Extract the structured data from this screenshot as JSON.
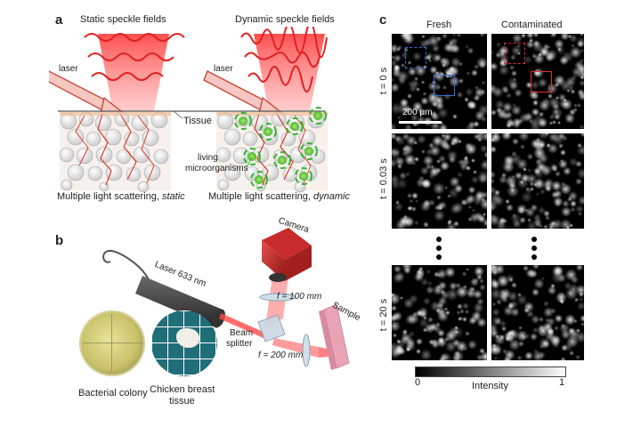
{
  "panel_a": {
    "label": "a",
    "static_title": "Static speckle fields",
    "dynamic_title": "Dynamic speckle fields",
    "laser_left": "laser",
    "laser_right": "laser",
    "tissue": "Tissue",
    "living": "living",
    "microorganisms": "microorganisms",
    "caption_static_prefix": "Multiple light scattering, ",
    "caption_static_em": "static",
    "caption_dynamic_prefix": "Multiple light scattering, ",
    "caption_dynamic_em": "dynamic"
  },
  "panel_b": {
    "label": "b",
    "camera": "Camera",
    "laser": "Laser 633 nm",
    "f100": "f = 100 mm",
    "f200": "f = 200 mm",
    "beam": "Beam",
    "splitter": "splitter",
    "sample": "Sample",
    "bacterial": "Bacterial colony",
    "chicken1": "Chicken breast",
    "chicken2": "tissue"
  },
  "panel_c": {
    "label": "c",
    "fresh": "Fresh",
    "contaminated": "Contaminated",
    "t0": "t = 0 s",
    "t003": "t = 0.03 s",
    "t20": "t = 20 s",
    "scale": "200 μm",
    "cb_min": "0",
    "cb_label": "Intensity",
    "cb_max": "1"
  },
  "colors": {
    "red": "#e02020",
    "blue": "#3a6fd8",
    "green": "#2fb52f"
  }
}
